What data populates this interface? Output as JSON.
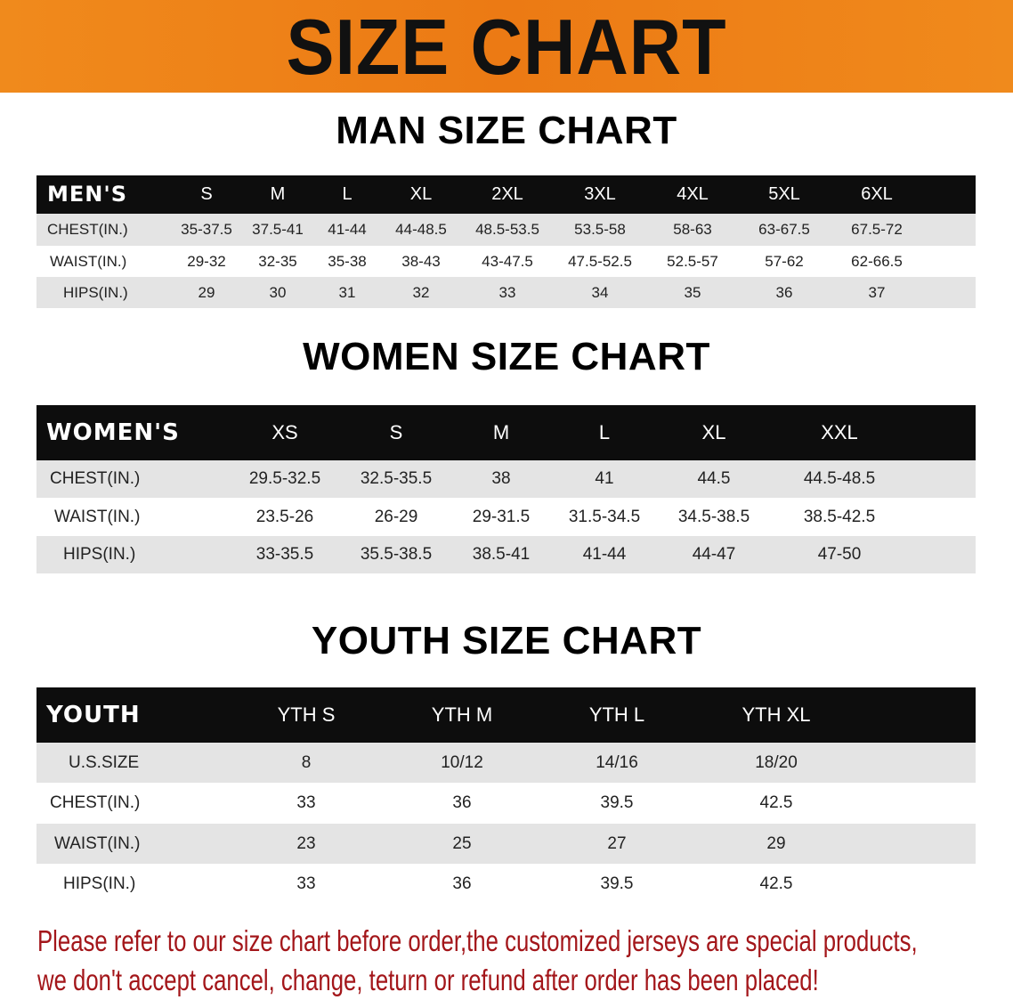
{
  "title": "SIZE CHART",
  "men": {
    "title": "MAN SIZE CHART",
    "header": [
      "MEN'S",
      "S",
      "M",
      "L",
      "XL",
      "2XL",
      "3XL",
      "4XL",
      "5XL",
      "6XL"
    ],
    "rows": [
      [
        "CHEST(IN.)",
        "35-37.5",
        "37.5-41",
        "41-44",
        "44-48.5",
        "48.5-53.5",
        "53.5-58",
        "58-63",
        "63-67.5",
        "67.5-72"
      ],
      [
        "WAIST(IN.)",
        "29-32",
        "32-35",
        "35-38",
        "38-43",
        "43-47.5",
        "47.5-52.5",
        "52.5-57",
        "57-62",
        "62-66.5"
      ],
      [
        "HIPS(IN.)",
        "29",
        "30",
        "31",
        "32",
        "33",
        "34",
        "35",
        "36",
        "37"
      ]
    ]
  },
  "women": {
    "title": "WOMEN SIZE CHART",
    "header": [
      "WOMEN'S",
      "XS",
      "S",
      "M",
      "L",
      "XL",
      "XXL"
    ],
    "rows": [
      [
        "CHEST(IN.)",
        "29.5-32.5",
        "32.5-35.5",
        "38",
        "41",
        "44.5",
        "44.5-48.5"
      ],
      [
        "WAIST(IN.)",
        "23.5-26",
        "26-29",
        "29-31.5",
        "31.5-34.5",
        "34.5-38.5",
        "38.5-42.5"
      ],
      [
        "HIPS(IN.)",
        "33-35.5",
        "35.5-38.5",
        "38.5-41",
        "41-44",
        "44-47",
        "47-50"
      ]
    ]
  },
  "youth": {
    "title": "YOUTH SIZE CHART",
    "header": [
      "YOUTH",
      "YTH S",
      "YTH M",
      "YTH L",
      "YTH XL"
    ],
    "rows": [
      [
        "U.S.SIZE",
        "8",
        "10/12",
        "14/16",
        "18/20"
      ],
      [
        "CHEST(IN.)",
        "33",
        "36",
        "39.5",
        "42.5"
      ],
      [
        "WAIST(IN.)",
        "23",
        "25",
        "27",
        "29"
      ],
      [
        "HIPS(IN.)",
        "33",
        "36",
        "39.5",
        "42.5"
      ]
    ]
  },
  "notice": [
    "Please refer to our size chart before order,the customized jerseys are special products,",
    "we don't accept cancel, change, teturn or refund after order has been placed!"
  ],
  "colors": {
    "banner": "#ec7a14",
    "header_row": "#0d0d0d",
    "stripe": "#e4e4e4",
    "notice": "#a3161a"
  }
}
